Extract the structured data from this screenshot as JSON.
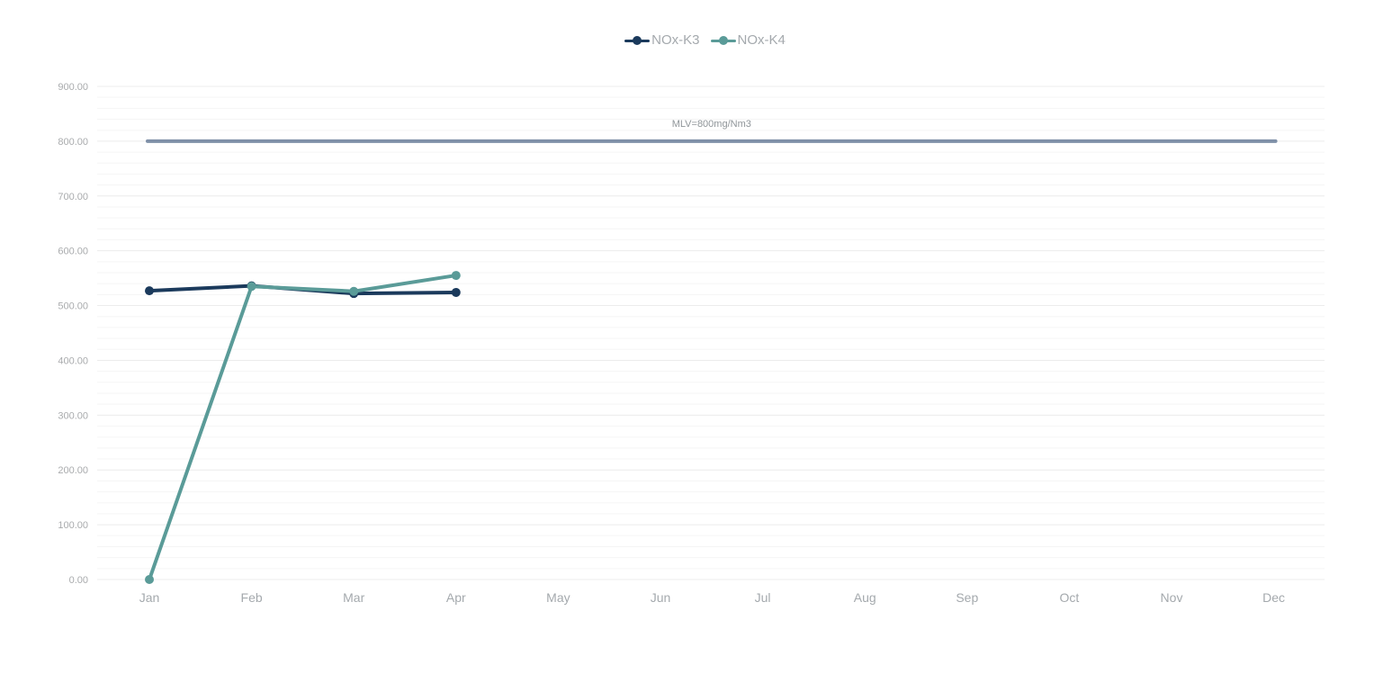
{
  "colors": {
    "series_k3": "#1b3a5c",
    "series_k4": "#5a9b98",
    "limit_line": "#7f90a8",
    "grid_major": "#ececec",
    "grid_minor": "#f5f5f5"
  },
  "legend": [
    {
      "label": "NOx-K3"
    },
    {
      "label": "NOx-K4"
    }
  ],
  "chart_data": {
    "type": "line",
    "title": "",
    "xlabel": "",
    "ylabel": "",
    "categories": [
      "Jan",
      "Feb",
      "Mar",
      "Apr",
      "May",
      "Jun",
      "Jul",
      "Aug",
      "Sep",
      "Oct",
      "Nov",
      "Dec"
    ],
    "ylim": [
      0,
      900
    ],
    "yticks": [
      "0.00",
      "100.00",
      "200.00",
      "300.00",
      "400.00",
      "500.00",
      "600.00",
      "700.00",
      "800.00",
      "900.00"
    ],
    "grid": true,
    "legend_position": "top-center",
    "series": [
      {
        "name": "NOx-K3",
        "values": [
          527,
          536,
          522,
          524,
          null,
          null,
          null,
          null,
          null,
          null,
          null,
          null
        ]
      },
      {
        "name": "NOx-K4",
        "values": [
          0,
          535,
          526,
          555,
          null,
          null,
          null,
          null,
          null,
          null,
          null,
          null
        ]
      }
    ],
    "annotations": [
      {
        "label": "MLV=800mg/Nm3",
        "y": 800,
        "x_from": "Jan",
        "x_to": "Dec"
      }
    ]
  }
}
